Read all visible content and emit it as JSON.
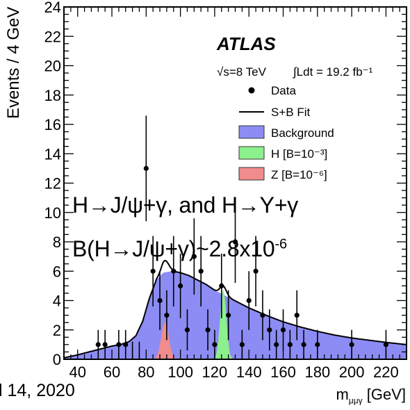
{
  "chart_data": {
    "type": "scatter",
    "experiment": "ATLAS",
    "energy_label": "√s=8 TeV",
    "lumi_label": "∫Ldt = 19.2 fb⁻¹",
    "ylabel": "Events / 4 GeV",
    "xlabel": "m",
    "xlabel_sub": "μμγ",
    "xlabel_unit": "[GeV]",
    "xlim": [
      32,
      232
    ],
    "ylim": [
      0,
      24
    ],
    "x_ticks": [
      40,
      60,
      80,
      100,
      120,
      140,
      160,
      180,
      200,
      220
    ],
    "y_ticks": [
      0,
      2,
      4,
      6,
      8,
      10,
      12,
      14,
      16,
      18,
      20,
      22,
      24
    ],
    "legend": {
      "placement": "top-right",
      "entries": [
        {
          "label": "Data",
          "marker": "dot"
        },
        {
          "label": "S+B Fit",
          "marker": "line"
        },
        {
          "label": "Background",
          "color": "#8c8cf4"
        },
        {
          "label": "H [B=10⁻³]",
          "color": "#8cf08c"
        },
        {
          "label": "Z [B=10⁻⁶]",
          "color": "#f08c8c"
        }
      ]
    },
    "data_points": [
      {
        "x": 52,
        "y": 1,
        "err": 1.0
      },
      {
        "x": 56,
        "y": 1,
        "err": 1.0
      },
      {
        "x": 64,
        "y": 1,
        "err": 1.0
      },
      {
        "x": 68,
        "y": 1,
        "err": 1.0
      },
      {
        "x": 72,
        "y": 0,
        "err": 1.2
      },
      {
        "x": 76,
        "y": 0,
        "err": 1.2
      },
      {
        "x": 80,
        "y": 13,
        "err": 3.6
      },
      {
        "x": 84,
        "y": 6,
        "err": 2.4
      },
      {
        "x": 88,
        "y": 4,
        "err": 2.0
      },
      {
        "x": 92,
        "y": 3,
        "err": 1.7
      },
      {
        "x": 96,
        "y": 6,
        "err": 2.4
      },
      {
        "x": 100,
        "y": 5,
        "err": 2.2
      },
      {
        "x": 104,
        "y": 2,
        "err": 1.4
      },
      {
        "x": 108,
        "y": 7,
        "err": 2.6
      },
      {
        "x": 112,
        "y": 6,
        "err": 2.4
      },
      {
        "x": 116,
        "y": 2,
        "err": 1.4
      },
      {
        "x": 120,
        "y": 1,
        "err": 1.0
      },
      {
        "x": 124,
        "y": 5,
        "err": 2.2
      },
      {
        "x": 128,
        "y": 3,
        "err": 1.7
      },
      {
        "x": 132,
        "y": 8,
        "err": 2.8
      },
      {
        "x": 136,
        "y": 1,
        "err": 1.0
      },
      {
        "x": 140,
        "y": 4,
        "err": 2.0
      },
      {
        "x": 144,
        "y": 6,
        "err": 2.4
      },
      {
        "x": 148,
        "y": 3,
        "err": 1.7
      },
      {
        "x": 152,
        "y": 2,
        "err": 1.4
      },
      {
        "x": 156,
        "y": 1,
        "err": 1.0
      },
      {
        "x": 160,
        "y": 2,
        "err": 1.4
      },
      {
        "x": 164,
        "y": 1,
        "err": 1.0
      },
      {
        "x": 168,
        "y": 3,
        "err": 1.7
      },
      {
        "x": 172,
        "y": 1,
        "err": 1.0
      },
      {
        "x": 180,
        "y": 1,
        "err": 1.0
      },
      {
        "x": 200,
        "y": 1,
        "err": 1.0
      },
      {
        "x": 220,
        "y": 1,
        "err": 1.0
      }
    ],
    "background_curve": {
      "x": [
        32,
        40,
        50,
        60,
        65,
        70,
        74,
        78,
        82,
        86,
        90,
        95,
        100,
        105,
        110,
        115,
        120,
        125,
        130,
        140,
        150,
        160,
        170,
        180,
        190,
        200,
        210,
        220,
        232
      ],
      "y": [
        0.1,
        0.3,
        0.6,
        0.9,
        1.0,
        1.2,
        1.6,
        2.6,
        4.2,
        5.4,
        5.9,
        6.0,
        5.9,
        5.7,
        5.4,
        5.1,
        4.7,
        4.4,
        4.1,
        3.5,
        3.0,
        2.55,
        2.2,
        1.9,
        1.65,
        1.45,
        1.3,
        1.15,
        1.0
      ]
    },
    "z_signal": {
      "mean": 91,
      "sigma": 2.2,
      "amp": 2.5,
      "color": "#f08c8c"
    },
    "h_signal": {
      "mean": 125,
      "sigma": 1.8,
      "amp": 4.7,
      "color": "#8cf08c"
    },
    "fit_bumps": [
      {
        "mean": 91,
        "sigma": 2.2,
        "amp": 0.8
      },
      {
        "mean": 125,
        "sigma": 1.8,
        "amp": 0.6
      }
    ],
    "background_color": "#8c8cf4"
  },
  "overlay": {
    "line1": "H→J/ψ+γ, and H→Y+γ",
    "line2_main": "B(H→J/ψ+γ)~2.8x10",
    "line2_sup": "-6"
  },
  "date_text": "l 14, 2020"
}
